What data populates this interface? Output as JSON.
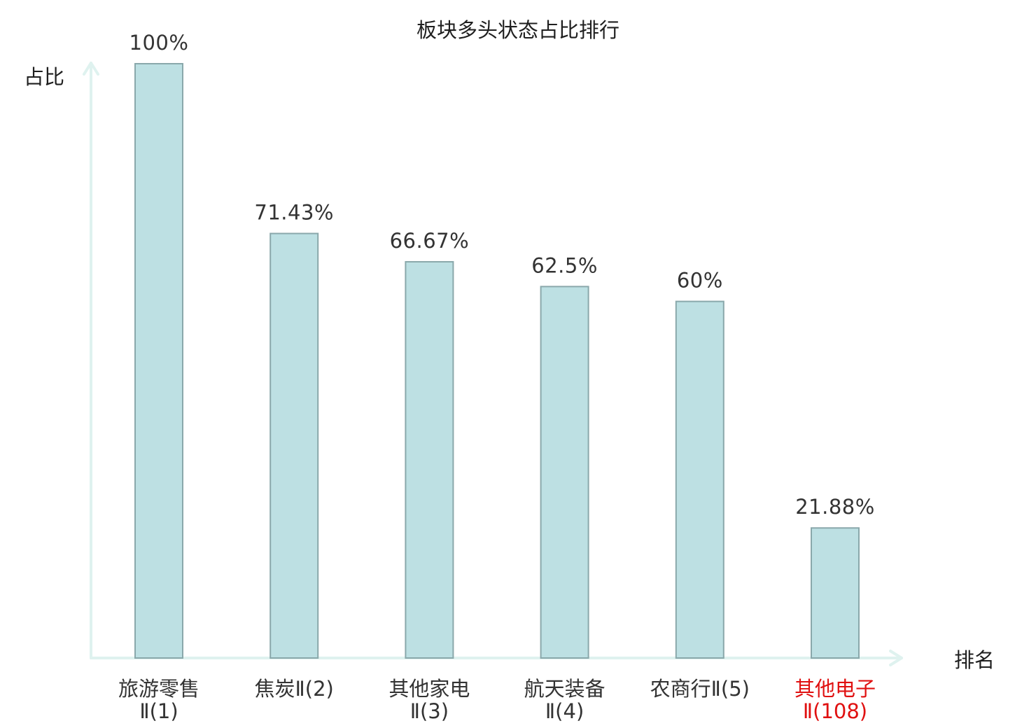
{
  "chart_data": {
    "type": "bar",
    "title": "板块多头状态占比排行",
    "ylabel": "占比",
    "xlabel": "排名",
    "ylim": [
      0,
      100
    ],
    "grid": false,
    "value_suffix": "%",
    "categories": [
      {
        "line1": "旅游零售",
        "line2": "Ⅱ(1)",
        "highlight": false
      },
      {
        "line1": "焦炭Ⅱ(2)",
        "line2": "",
        "highlight": false
      },
      {
        "line1": "其他家电",
        "line2": "Ⅱ(3)",
        "highlight": false
      },
      {
        "line1": "航天装备",
        "line2": "Ⅱ(4)",
        "highlight": false
      },
      {
        "line1": "农商行Ⅱ(5)",
        "line2": "",
        "highlight": false
      },
      {
        "line1": "其他电子",
        "line2": "Ⅱ(108)",
        "highlight": true
      }
    ],
    "values": [
      100,
      71.43,
      66.67,
      62.5,
      60,
      21.88
    ],
    "value_labels": [
      "100%",
      "71.43%",
      "66.67%",
      "62.5%",
      "60%",
      "21.88%"
    ],
    "colors": {
      "bar_fill": "#bde0e3",
      "bar_stroke": "#8aa8ab",
      "axis": "#dff2ef",
      "label_normal": "#333333",
      "label_highlight": "#e01010"
    }
  }
}
